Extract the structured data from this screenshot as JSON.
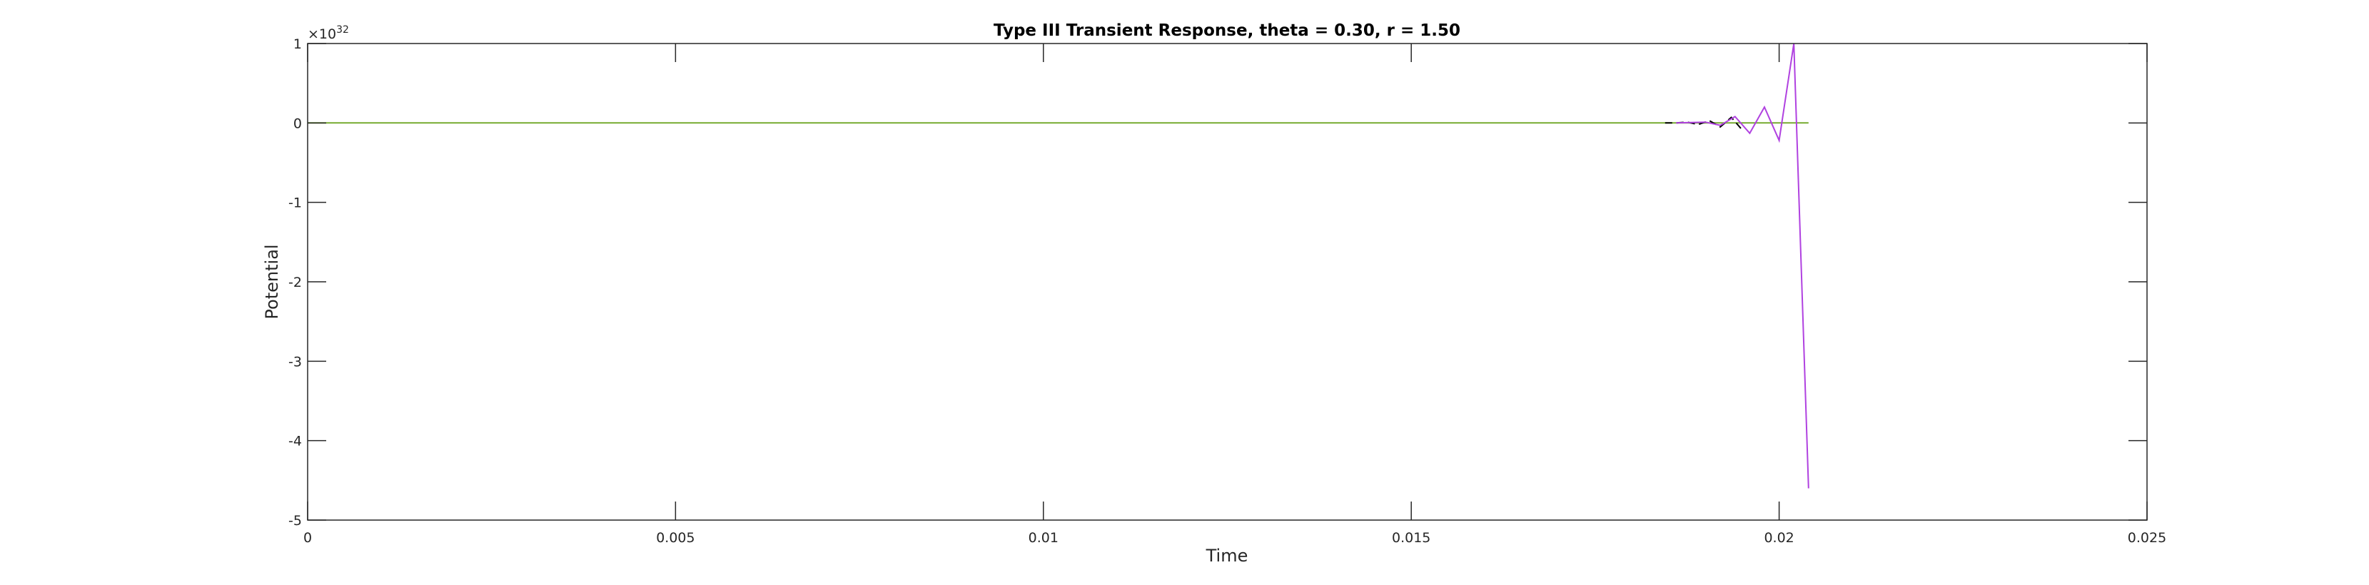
{
  "chart_data": {
    "type": "line",
    "title": "Type III Transient Response, theta = 0.30, r = 1.50",
    "xlabel": "Time",
    "ylabel": "Potential",
    "y_exponent_base": "×10",
    "y_exponent_power": "32",
    "xlim": [
      0,
      0.025
    ],
    "ylim": [
      -5,
      1
    ],
    "y_scale": "1e32",
    "x_ticks": [
      0,
      0.005,
      0.01,
      0.015,
      0.02,
      0.025
    ],
    "x_tick_labels": [
      "0",
      "0.005",
      "0.01",
      "0.015",
      "0.02",
      "0.025"
    ],
    "y_ticks": [
      1,
      0,
      -1,
      -2,
      -3,
      -4,
      -5
    ],
    "y_tick_labels": [
      "1",
      "0",
      "-1",
      "-2",
      "-3",
      "-4",
      "-5"
    ],
    "grid": false,
    "box": true,
    "series": [
      {
        "color": "#77ac30",
        "style": "solid",
        "x": [
          0,
          0.0204
        ],
        "y": [
          0,
          0
        ]
      },
      {
        "color": "#000000",
        "style": "dashed",
        "x": [
          0.01845,
          0.0186,
          0.01875,
          0.0189,
          0.01905,
          0.0192,
          0.01935,
          0.0195
        ],
        "y": [
          0.0,
          0.0,
          0.01,
          -0.02,
          0.03,
          -0.05,
          0.07,
          -0.09
        ]
      },
      {
        "color": "#b041e0",
        "style": "solid",
        "x": [
          0.0186,
          0.0188,
          0.019,
          0.0192,
          0.0194,
          0.0196,
          0.0198,
          0.02,
          0.0202,
          0.0204
        ],
        "y": [
          0.0,
          0.005,
          0.01,
          -0.03,
          0.08,
          -0.13,
          0.2,
          -0.22,
          1.0,
          -4.6
        ]
      }
    ]
  }
}
